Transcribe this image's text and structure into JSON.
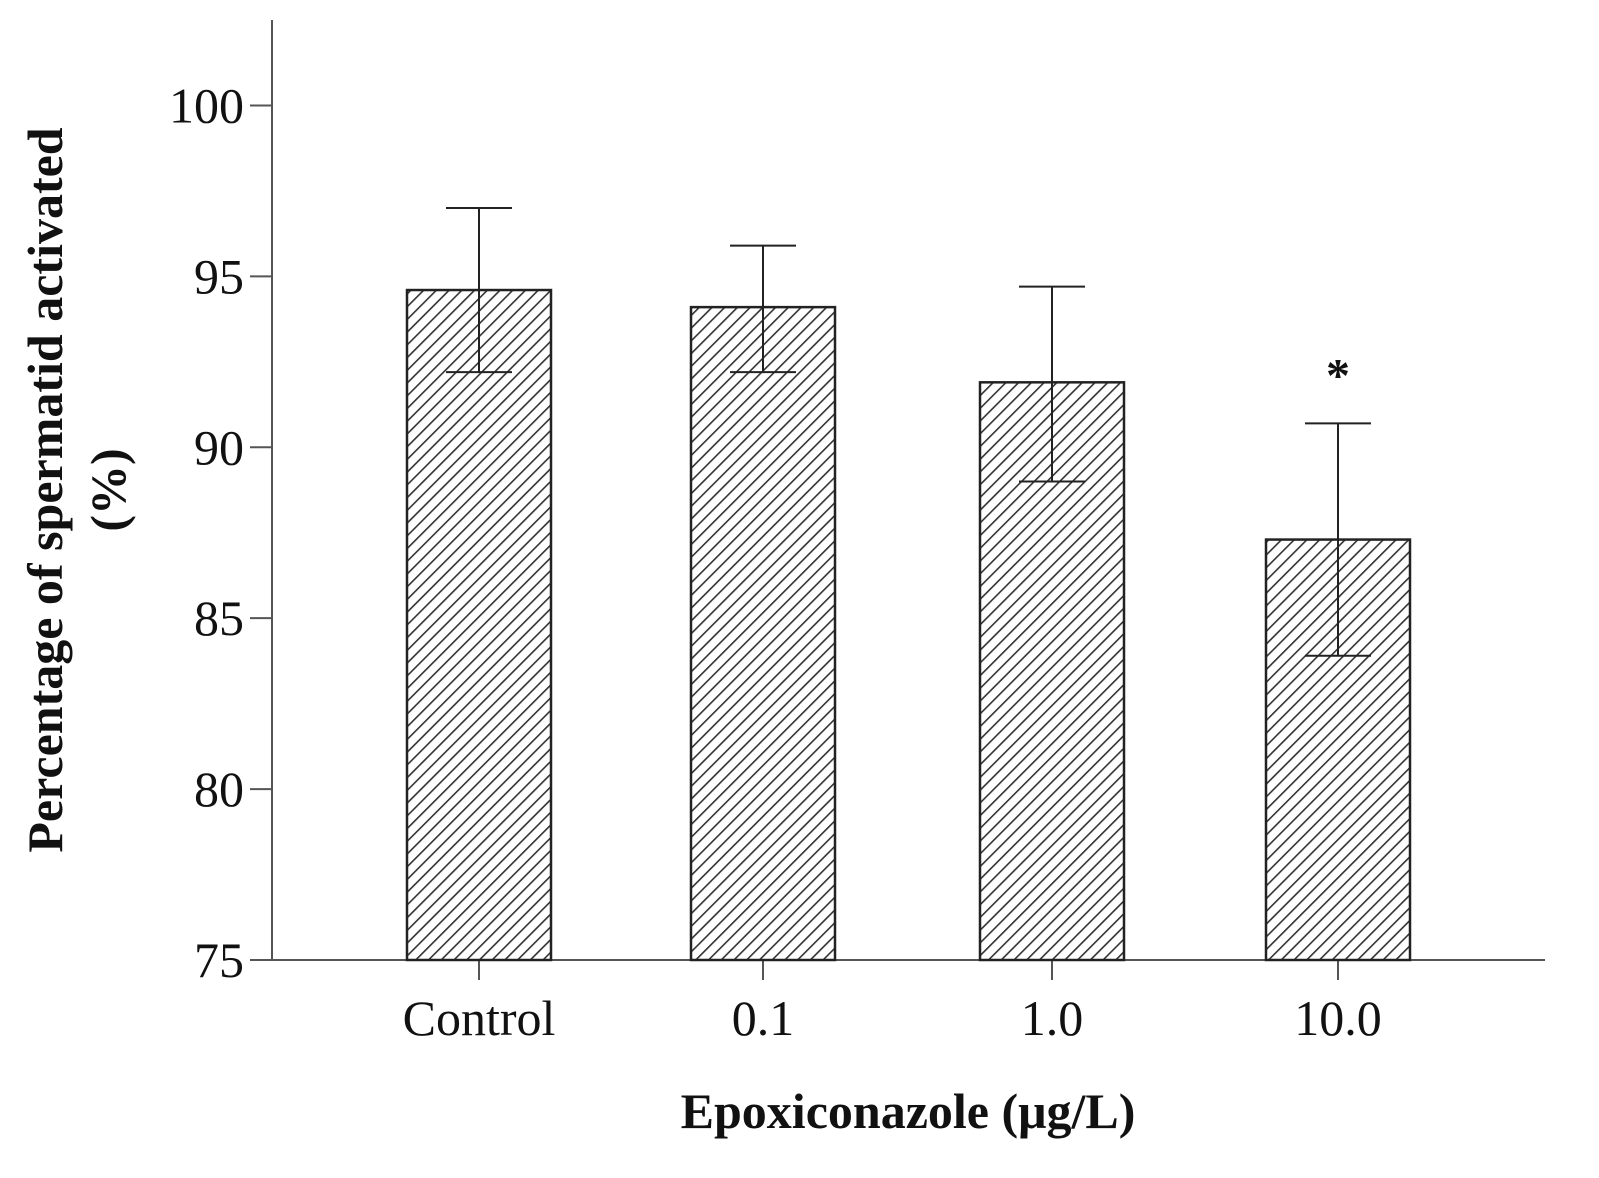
{
  "chart_data": {
    "type": "bar",
    "categories": [
      "Control",
      "0.1",
      "1.0",
      "10.0"
    ],
    "values": [
      94.6,
      94.1,
      91.9,
      87.3
    ],
    "error_upper": [
      97.0,
      95.9,
      94.7,
      90.7
    ],
    "error_lower": [
      92.2,
      92.2,
      89.0,
      83.9
    ],
    "annotations": [
      "",
      "",
      "",
      "*"
    ],
    "xlabel": "Epoxiconazole (μg/L)",
    "ylabel_line1": "Percentage of spermatid activated",
    "ylabel_line2": "(%)",
    "ylim": [
      75,
      102.5
    ],
    "yticks": [
      75,
      80,
      85,
      90,
      95,
      100
    ],
    "grid": false,
    "bar_fill": "hatched",
    "colors": {
      "bar_stroke": "#222222",
      "hatch": "#333333",
      "axis": "#555555"
    }
  }
}
